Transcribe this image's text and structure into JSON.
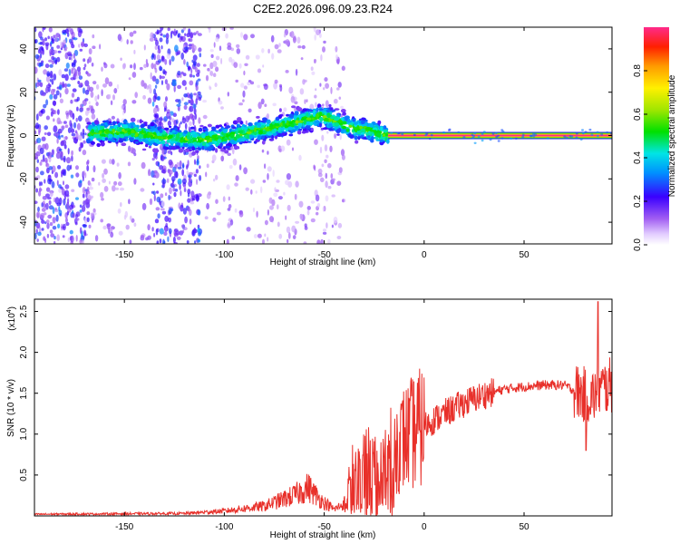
{
  "title": "C2E2.2026.096.09.23.R24",
  "chart_data": [
    {
      "type": "heatmap",
      "xlabel": "Height of straight line (km)",
      "ylabel": "Frequency (Hz)",
      "xlim": [
        -195,
        94
      ],
      "ylim": [
        -50,
        50
      ],
      "x_ticks": [
        -150,
        -100,
        -50,
        0,
        50
      ],
      "y_ticks": [
        -40,
        -20,
        0,
        20,
        40
      ],
      "colorbar": {
        "label": "Normalized spectral amplitude",
        "range": [
          0,
          1
        ],
        "ticks": [
          "0.0",
          "0.2",
          "0.4",
          "0.6",
          "0.8"
        ],
        "tick_values": [
          0,
          0.2,
          0.4,
          0.6,
          0.8
        ]
      },
      "ridge": [
        {
          "x": -167,
          "f": 1
        },
        {
          "x": -150,
          "f": 2
        },
        {
          "x": -130,
          "f": -1
        },
        {
          "x": -110,
          "f": -2
        },
        {
          "x": -95,
          "f": 0
        },
        {
          "x": -80,
          "f": 3
        },
        {
          "x": -65,
          "f": 6
        },
        {
          "x": -52,
          "f": 9
        },
        {
          "x": -45,
          "f": 7
        },
        {
          "x": -38,
          "f": 4
        },
        {
          "x": -30,
          "f": 3
        },
        {
          "x": -22,
          "f": 1
        },
        {
          "x": -18,
          "f": 0
        },
        {
          "x": 94,
          "f": 0
        }
      ],
      "steady_band": {
        "x_from": -18,
        "x_to": 94,
        "f": 0,
        "amplitude": 1.0
      }
    },
    {
      "type": "line",
      "xlabel": "Height of straight line (km)",
      "ylabel": "SNR (10 * v/v)",
      "y_multiplier": "(x10",
      "y_multiplier_exp": "4",
      "xlim": [
        -195,
        94
      ],
      "ylim": [
        0,
        2.65
      ],
      "x_ticks": [
        -150,
        -100,
        -50,
        0,
        50
      ],
      "y_ticks": [
        0.5,
        1.0,
        1.5,
        2.0,
        2.5
      ],
      "y_tick_labels": [
        "0.5",
        "1.0",
        "1.5",
        "2.0",
        "2.5"
      ],
      "color": "#e8302a",
      "envelope": [
        {
          "x": -195,
          "y": 0.02
        },
        {
          "x": -120,
          "y": 0.03
        },
        {
          "x": -100,
          "y": 0.06
        },
        {
          "x": -80,
          "y": 0.12
        },
        {
          "x": -65,
          "y": 0.25
        },
        {
          "x": -58,
          "y": 0.35
        },
        {
          "x": -52,
          "y": 0.2
        },
        {
          "x": -45,
          "y": 0.08
        },
        {
          "x": -40,
          "y": 0.15
        },
        {
          "x": -35,
          "y": 0.6
        },
        {
          "x": -28,
          "y": 0.7
        },
        {
          "x": -20,
          "y": 0.7
        },
        {
          "x": -10,
          "y": 0.95
        },
        {
          "x": 0,
          "y": 1.1
        },
        {
          "x": 10,
          "y": 1.25
        },
        {
          "x": 20,
          "y": 1.38
        },
        {
          "x": 30,
          "y": 1.48
        },
        {
          "x": 40,
          "y": 1.55
        },
        {
          "x": 50,
          "y": 1.58
        },
        {
          "x": 60,
          "y": 1.6
        },
        {
          "x": 70,
          "y": 1.6
        },
        {
          "x": 78,
          "y": 1.5
        },
        {
          "x": 84,
          "y": 1.45
        },
        {
          "x": 88,
          "y": 1.55
        },
        {
          "x": 94,
          "y": 1.6
        }
      ],
      "peak": {
        "x": 87,
        "y": 2.62
      },
      "dip": {
        "x": 81,
        "y": 0.8
      }
    }
  ]
}
